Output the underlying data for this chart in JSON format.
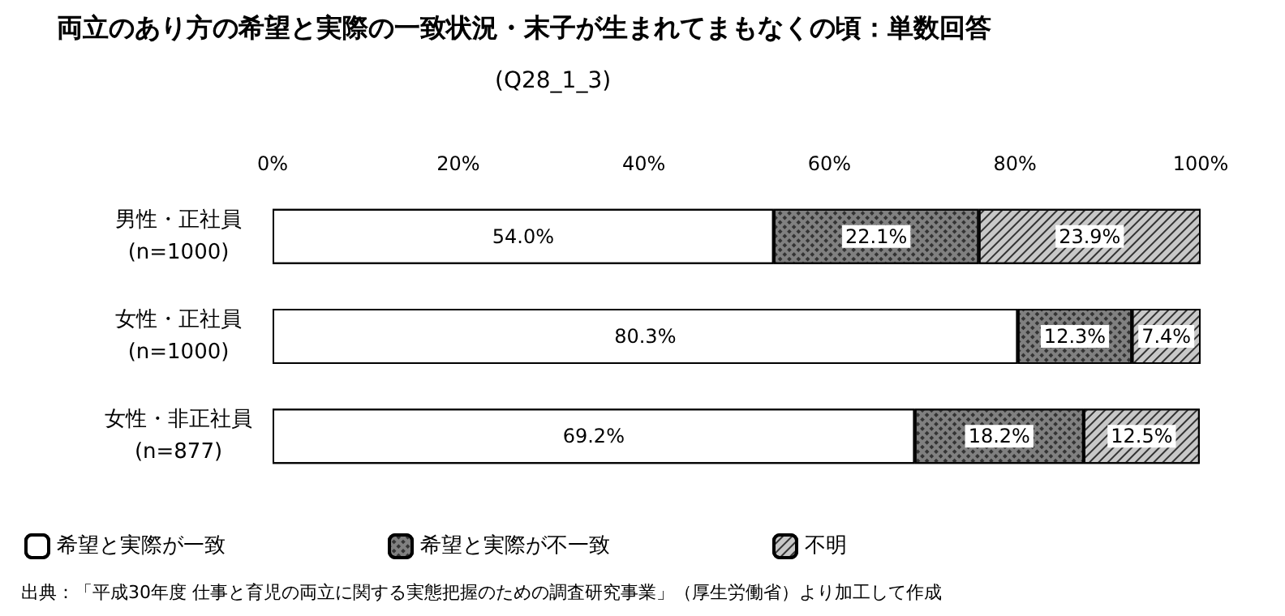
{
  "chart_data": {
    "type": "bar",
    "orientation": "horizontal",
    "stacked": true,
    "title": "両立のあり方の希望と実際の一致状況・末子が生まれてまもなくの頃：単数回答",
    "subtitle": "(Q28_1_3)",
    "categories": [
      "男性・正社員\n(n=1000)",
      "女性・正社員\n(n=1000)",
      "女性・非正社員\n(n=877)"
    ],
    "series": [
      {
        "name": "希望と実際が一致",
        "color": "#ffffff",
        "values": [
          54.0,
          80.3,
          69.2
        ],
        "value_labels": [
          "54.0%",
          "80.3%",
          "69.2%"
        ]
      },
      {
        "name": "希望と実際が不一致",
        "color": "#808080",
        "values": [
          22.1,
          12.3,
          18.2
        ],
        "value_labels": [
          "22.1%",
          "12.3%",
          "18.2%"
        ]
      },
      {
        "name": "不明",
        "color": "#c8c8c8",
        "values": [
          23.9,
          7.4,
          12.5
        ],
        "value_labels": [
          "23.9%",
          "7.4%",
          "12.5%"
        ]
      }
    ],
    "xlim": [
      0,
      100
    ],
    "xticks": [
      {
        "value": 0,
        "label": "0%"
      },
      {
        "value": 20,
        "label": "20%"
      },
      {
        "value": 40,
        "label": "40%"
      },
      {
        "value": 60,
        "label": "60%"
      },
      {
        "value": 80,
        "label": "80%"
      },
      {
        "value": 100,
        "label": "100%"
      }
    ],
    "grid": false,
    "legend": "bottom",
    "annotations": [
      "出典：「平成30年度 仕事と育児の両立に関する実態把握のための調査研究事業」（厚生労働省）より加工して作成"
    ]
  }
}
